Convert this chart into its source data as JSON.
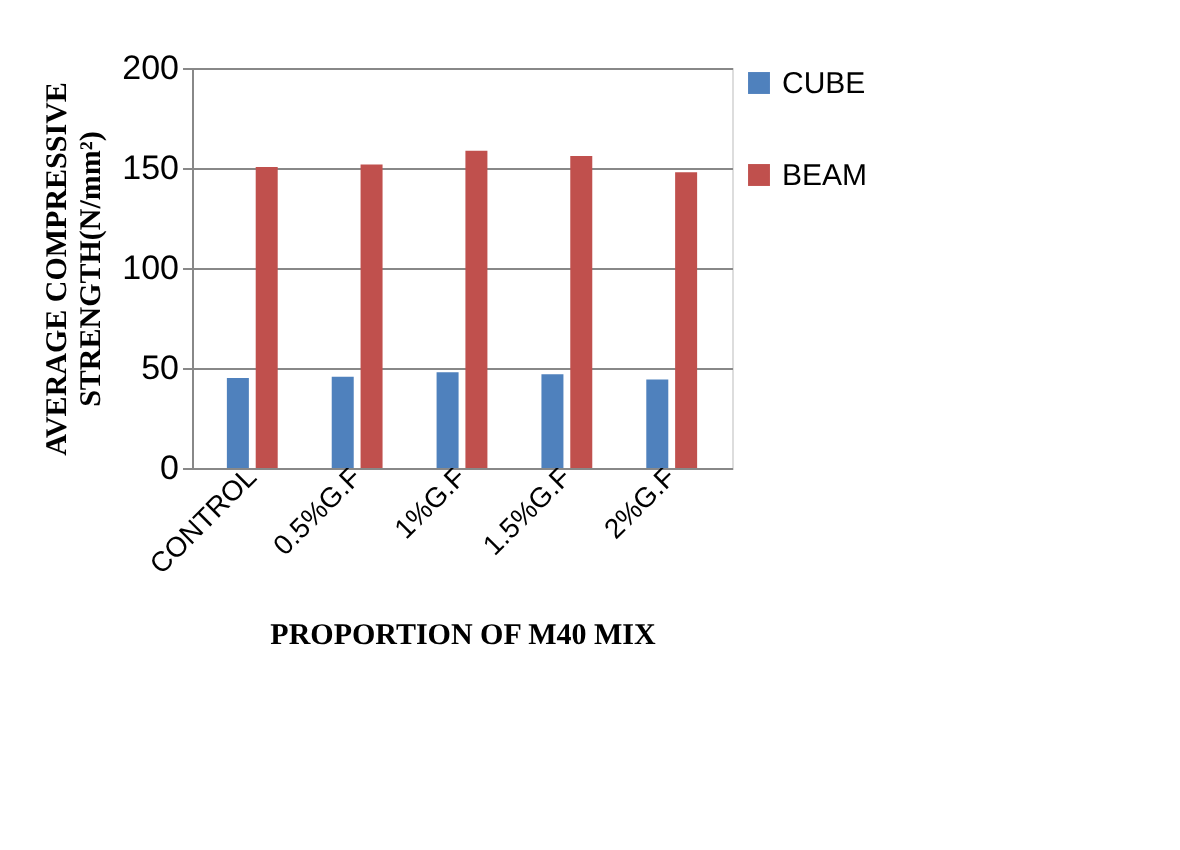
{
  "chart_data": {
    "type": "bar",
    "xlabel": "PROPORTION OF M40 MIX",
    "ylabel": "AVERAGE COMPRESSIVE STRENGTH(N/mm²)",
    "categories": [
      "CONTROL",
      "0.5%G.F",
      "1%G.F",
      "1.5%G.F",
      "2%G.F"
    ],
    "series": [
      {
        "name": "CUBE",
        "color": "#4f81bd",
        "values": [
          45,
          45.6,
          47.9,
          46.9,
          44.3
        ]
      },
      {
        "name": "BEAM",
        "color": "#c0504d",
        "values": [
          150.5,
          151.8,
          158.6,
          156,
          147.9
        ]
      }
    ],
    "ylim": [
      0,
      200
    ],
    "yticks": [
      0,
      50,
      100,
      150,
      200
    ],
    "grid": "y",
    "legend": "right"
  }
}
